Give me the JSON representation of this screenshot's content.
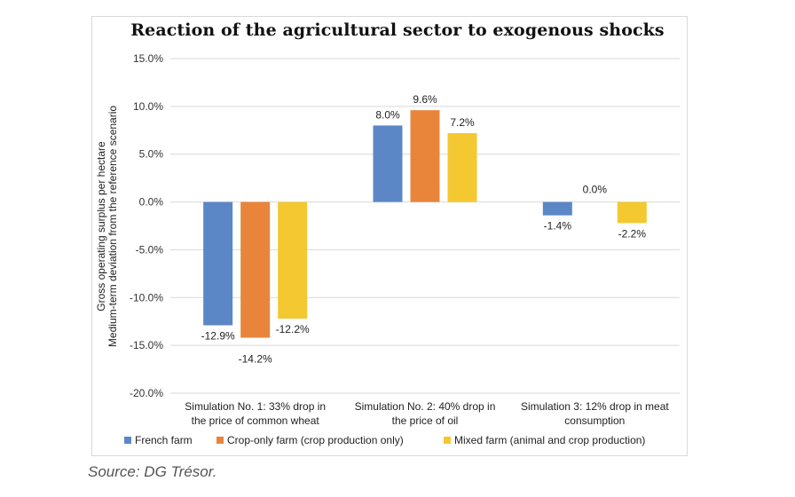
{
  "title": "Reaction of the agricultural sector to exogenous shocks",
  "source": "Source: DG Trésor.",
  "chart_data": {
    "type": "bar",
    "title": "Reaction of the agricultural sector to exogenous shocks",
    "ylabel": [
      "Gross operating surplus per hectare",
      "Medium-term deviation from the reference scenario"
    ],
    "xlabel": "",
    "ylim": [
      -20,
      15
    ],
    "yticks": [
      "-20.0%",
      "-15.0%",
      "-10.0%",
      "-5.0%",
      "0.0%",
      "5.0%",
      "10.0%",
      "15.0%"
    ],
    "grid": true,
    "legend": "bottom",
    "categories": [
      [
        "Simulation No. 1: 33% drop in",
        "the price of common wheat"
      ],
      [
        "Simulation No. 2: 40% drop in",
        "the price of oil"
      ],
      [
        "Simulation 3: 12% drop in meat",
        "consumption"
      ]
    ],
    "series": [
      {
        "name": "French farm",
        "color": "#5b87c6",
        "values": [
          -12.9,
          8.0,
          -1.4
        ],
        "labels": [
          "-12.9%",
          "8.0%",
          "-1.4%"
        ]
      },
      {
        "name": "Crop-only farm (crop production only)",
        "color": "#e8853b",
        "values": [
          -14.2,
          9.6,
          0.0
        ],
        "labels": [
          "-14.2%",
          "9.6%",
          "0.0%"
        ]
      },
      {
        "name": "Mixed farm (animal and crop production)",
        "color": "#f4c830",
        "values": [
          -12.2,
          7.2,
          -2.2
        ],
        "labels": [
          "-12.2%",
          "7.2%",
          "-2.2%"
        ]
      }
    ]
  }
}
